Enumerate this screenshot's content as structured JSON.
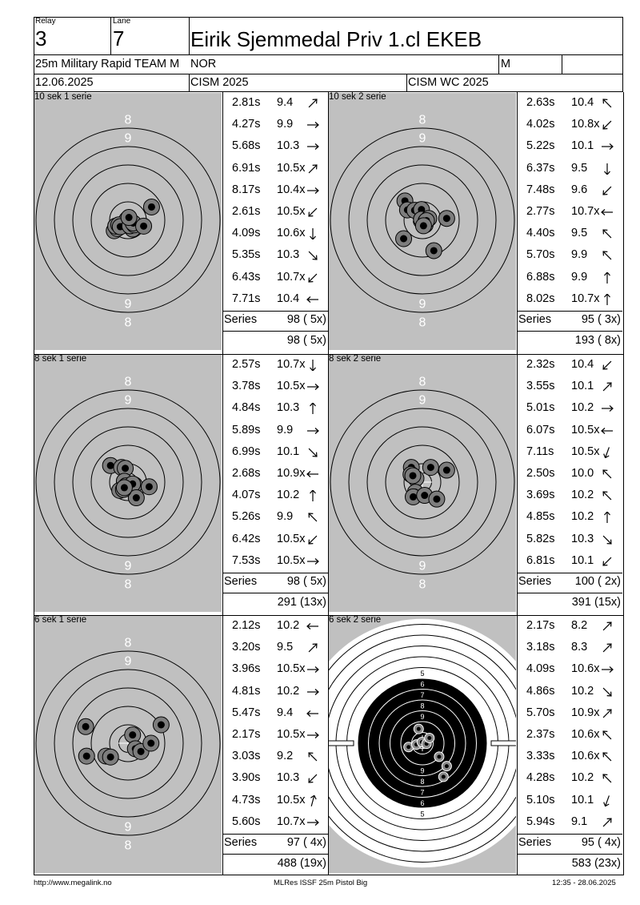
{
  "header": {
    "relay_label": "Relay",
    "relay_value": "3",
    "lane_label": "Lane",
    "lane_value": "7",
    "shooter_name": "Eirik Sjemmedal Priv 1.cl EKEB",
    "event": "25m Military Rapid TEAM M",
    "nation": "NOR",
    "gender": "M",
    "date": "12.06.2025",
    "competition": "CISM 2025",
    "match": "CISM WC 2025"
  },
  "panels": [
    {
      "title": "10 sek 1 serie",
      "shots": [
        {
          "time": "2.81s",
          "value": "9.4",
          "dir": 45
        },
        {
          "time": "4.27s",
          "value": "9.9",
          "dir": 90
        },
        {
          "time": "5.68s",
          "value": "10.3",
          "dir": 90
        },
        {
          "time": "6.91s",
          "value": "10.5x",
          "dir": 45
        },
        {
          "time": "8.17s",
          "value": "10.4x",
          "dir": 90
        },
        {
          "time": "2.61s",
          "value": "10.5x",
          "dir": 225
        },
        {
          "time": "4.09s",
          "value": "10.6x",
          "dir": 180
        },
        {
          "time": "5.35s",
          "value": "10.3",
          "dir": 135
        },
        {
          "time": "6.43s",
          "value": "10.7x",
          "dir": 225
        },
        {
          "time": "7.71s",
          "value": "10.4",
          "dir": 270
        }
      ],
      "series_label": "Series",
      "series_score": "98 ( 5x)",
      "total": "98 ( 5x)",
      "impacts": [
        [
          -0.75,
          -0.57
        ],
        [
          -0.58,
          -0.45
        ],
        [
          -0.67,
          -0.32
        ],
        [
          -0.5,
          -0.25
        ],
        [
          -0.42,
          -0.35
        ],
        [
          0.25,
          -0.48
        ],
        [
          0.1,
          -0.3
        ],
        [
          0.35,
          -0.25
        ],
        [
          0.28,
          -0.15
        ],
        [
          0.05,
          0.15
        ],
        [
          0.85,
          -0.32
        ],
        [
          1.28,
          0.72
        ]
      ]
    },
    {
      "title": "10 sek 2 serie",
      "shots": [
        {
          "time": "2.63s",
          "value": "10.4",
          "dir": 315
        },
        {
          "time": "4.02s",
          "value": "10.8x",
          "dir": 225
        },
        {
          "time": "5.22s",
          "value": "10.1",
          "dir": 90
        },
        {
          "time": "6.37s",
          "value": "9.5",
          "dir": 180
        },
        {
          "time": "7.48s",
          "value": "9.6",
          "dir": 225
        },
        {
          "time": "2.77s",
          "value": "10.7x",
          "dir": 270
        },
        {
          "time": "4.40s",
          "value": "9.5",
          "dir": 315
        },
        {
          "time": "5.70s",
          "value": "9.9",
          "dir": 315
        },
        {
          "time": "6.88s",
          "value": "9.9",
          "dir": 0
        },
        {
          "time": "8.02s",
          "value": "10.7x",
          "dir": 0
        }
      ],
      "series_label": "Series",
      "series_score": "95 ( 3x)",
      "total": "193 ( 8x)",
      "impacts": [
        [
          -0.95,
          1.05
        ],
        [
          -0.81,
          0.56
        ],
        [
          -0.42,
          0.54
        ],
        [
          -0.05,
          0.58
        ],
        [
          -0.05,
          0.05
        ],
        [
          0.15,
          -0.25
        ],
        [
          0.35,
          0.1
        ],
        [
          0.22,
          -0.02
        ],
        [
          1.32,
          0.1
        ],
        [
          0.06,
          -0.3
        ],
        [
          0.62,
          -1.65
        ],
        [
          -1.02,
          -1.0
        ]
      ]
    },
    {
      "title": "8 sek 1 serie",
      "shots": [
        {
          "time": "2.57s",
          "value": "10.7x",
          "dir": 180
        },
        {
          "time": "3.78s",
          "value": "10.5x",
          "dir": 90
        },
        {
          "time": "4.84s",
          "value": "10.3",
          "dir": 0
        },
        {
          "time": "5.89s",
          "value": "9.9",
          "dir": 90
        },
        {
          "time": "6.99s",
          "value": "10.1",
          "dir": 135
        },
        {
          "time": "2.68s",
          "value": "10.9x",
          "dir": 270
        },
        {
          "time": "4.07s",
          "value": "10.2",
          "dir": 0
        },
        {
          "time": "5.26s",
          "value": "9.9",
          "dir": 315
        },
        {
          "time": "6.42s",
          "value": "10.5x",
          "dir": 225
        },
        {
          "time": "7.53s",
          "value": "10.5x",
          "dir": 90
        }
      ],
      "series_label": "Series",
      "series_score": "98 ( 5x)",
      "total": "291 (13x)",
      "impacts": [
        [
          -0.95,
          0.9
        ],
        [
          -0.35,
          0.8
        ],
        [
          -0.15,
          0.75
        ],
        [
          -0.2,
          0.05
        ],
        [
          -0.1,
          -0.2
        ],
        [
          0.35,
          -0.15
        ],
        [
          0.25,
          -0.1
        ],
        [
          1.15,
          -0.25
        ],
        [
          0.45,
          -0.85
        ],
        [
          -0.45,
          -0.45
        ],
        [
          -0.25,
          -0.4
        ],
        [
          -0.2,
          -0.3
        ]
      ]
    },
    {
      "title": "8 sek 2 serie",
      "shots": [
        {
          "time": "2.32s",
          "value": "10.4",
          "dir": 225
        },
        {
          "time": "3.55s",
          "value": "10.1",
          "dir": 45
        },
        {
          "time": "5.01s",
          "value": "10.2",
          "dir": 90
        },
        {
          "time": "6.07s",
          "value": "10.5x",
          "dir": 270
        },
        {
          "time": "7.11s",
          "value": "10.5x",
          "dir": 200
        },
        {
          "time": "2.50s",
          "value": "10.0",
          "dir": 315
        },
        {
          "time": "3.69s",
          "value": "10.2",
          "dir": 315
        },
        {
          "time": "4.85s",
          "value": "10.2",
          "dir": 0
        },
        {
          "time": "5.82s",
          "value": "10.3",
          "dir": 135
        },
        {
          "time": "6.81s",
          "value": "10.1",
          "dir": 225
        }
      ],
      "series_label": "Series",
      "series_score": "100 ( 2x)",
      "total": "391 (15x)",
      "impacts": [
        [
          -0.6,
          0.8
        ],
        [
          0.45,
          0.8
        ],
        [
          1.32,
          0.65
        ],
        [
          -0.62,
          0.42
        ],
        [
          -0.35,
          0.2
        ],
        [
          -0.52,
          0.35
        ],
        [
          -0.38,
          -0.55
        ],
        [
          -0.5,
          -0.8
        ],
        [
          0.12,
          -0.72
        ],
        [
          0.78,
          -0.92
        ]
      ]
    },
    {
      "title": "6 sek 1 serie",
      "shots": [
        {
          "time": "2.12s",
          "value": "10.2",
          "dir": 270
        },
        {
          "time": "3.20s",
          "value": "9.5",
          "dir": 45
        },
        {
          "time": "3.96s",
          "value": "10.5x",
          "dir": 90
        },
        {
          "time": "4.81s",
          "value": "10.2",
          "dir": 90
        },
        {
          "time": "5.47s",
          "value": "9.4",
          "dir": 270
        },
        {
          "time": "2.17s",
          "value": "10.5x",
          "dir": 90
        },
        {
          "time": "3.03s",
          "value": "9.2",
          "dir": 315
        },
        {
          "time": "3.90s",
          "value": "10.3",
          "dir": 225
        },
        {
          "time": "4.73s",
          "value": "10.5x",
          "dir": 15
        },
        {
          "time": "5.60s",
          "value": "10.7x",
          "dir": 90
        }
      ],
      "series_label": "Series",
      "series_score": "97 ( 4x)",
      "total": "488 (19x)",
      "impacts": [
        [
          -2.3,
          0.9
        ],
        [
          -2.25,
          -0.7
        ],
        [
          -1.2,
          -0.7
        ],
        [
          -0.95,
          -0.75
        ],
        [
          0.25,
          0.45
        ],
        [
          0.4,
          -0.3
        ],
        [
          0.7,
          -0.45
        ],
        [
          1.25,
          0.0
        ],
        [
          1.8,
          1.0
        ]
      ]
    },
    {
      "title": "6 sek 2 serie",
      "shots": [
        {
          "time": "2.17s",
          "value": "8.2",
          "dir": 45
        },
        {
          "time": "3.18s",
          "value": "8.3",
          "dir": 45
        },
        {
          "time": "4.09s",
          "value": "10.6x",
          "dir": 90
        },
        {
          "time": "4.86s",
          "value": "10.2",
          "dir": 135
        },
        {
          "time": "5.70s",
          "value": "10.9x",
          "dir": 45
        },
        {
          "time": "2.37s",
          "value": "10.6x",
          "dir": 315
        },
        {
          "time": "3.33s",
          "value": "10.6x",
          "dir": 315
        },
        {
          "time": "4.28s",
          "value": "10.2",
          "dir": 315
        },
        {
          "time": "5.10s",
          "value": "10.1",
          "dir": 200
        },
        {
          "time": "5.94s",
          "value": "9.1",
          "dir": 45
        }
      ],
      "series_label": "Series",
      "series_score": "95 ( 4x)",
      "total": "583 (23x)",
      "impacts": [
        [
          -1.28,
          0.35
        ],
        [
          -0.55,
          0.12
        ],
        [
          -0.05,
          -0.1
        ],
        [
          0.38,
          0.05
        ],
        [
          0.65,
          -0.48
        ],
        [
          -0.35,
          -1.32
        ],
        [
          1.55,
          1.25
        ],
        [
          2.25,
          2.12
        ],
        [
          1.95,
          3.1
        ]
      ]
    }
  ],
  "footer": {
    "url": "http://www.megalink.no",
    "software": "MLRes ISSF 25m Pistol Big",
    "timestamp": "12:35 - 28.06.2025"
  }
}
